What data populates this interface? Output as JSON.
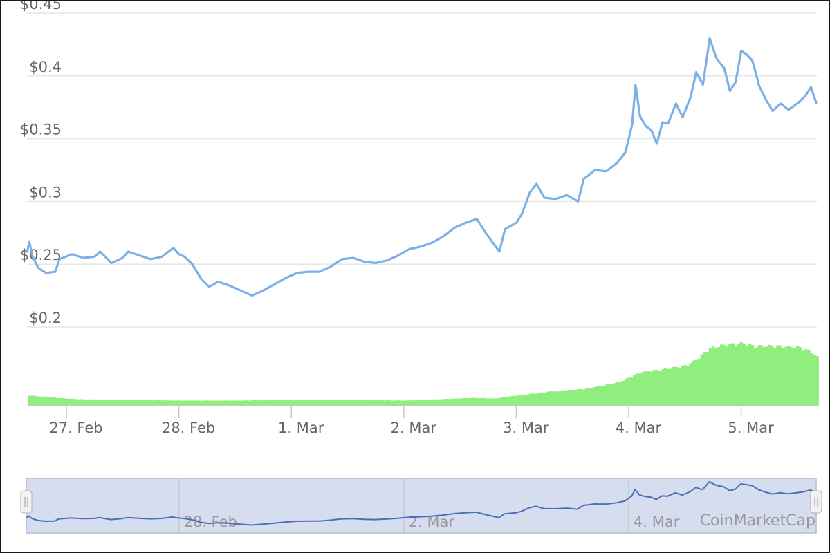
{
  "chart_data": {
    "type": "line",
    "title": "",
    "xlabel": "",
    "ylabel": "",
    "y_ticks": [
      "$0.2",
      "$0.25",
      "$0.3",
      "$0.35",
      "$0.4",
      "$0.45"
    ],
    "ylim": [
      0.2,
      0.45
    ],
    "x_ticks": [
      "27. Feb",
      "28. Feb",
      "1. Mar",
      "2. Mar",
      "3. Mar",
      "4. Mar",
      "5. Mar"
    ],
    "grid": true,
    "legend": "none",
    "price_color": "#7cb0e6",
    "volume_color": "#90ee7e",
    "price_series": {
      "name": "Price",
      "points": [
        [
          -0.35,
          0.259
        ],
        [
          -0.33,
          0.268
        ],
        [
          -0.3,
          0.256
        ],
        [
          -0.25,
          0.247
        ],
        [
          -0.18,
          0.243
        ],
        [
          -0.1,
          0.244
        ],
        [
          -0.06,
          0.254
        ],
        [
          0.05,
          0.258
        ],
        [
          0.15,
          0.255
        ],
        [
          0.25,
          0.256
        ],
        [
          0.3,
          0.26
        ],
        [
          0.4,
          0.251
        ],
        [
          0.5,
          0.255
        ],
        [
          0.55,
          0.26
        ],
        [
          0.65,
          0.257
        ],
        [
          0.75,
          0.254
        ],
        [
          0.85,
          0.256
        ],
        [
          0.95,
          0.263
        ],
        [
          1.0,
          0.258
        ],
        [
          1.05,
          0.256
        ],
        [
          1.12,
          0.25
        ],
        [
          1.2,
          0.238
        ],
        [
          1.27,
          0.232
        ],
        [
          1.35,
          0.236
        ],
        [
          1.45,
          0.233
        ],
        [
          1.55,
          0.229
        ],
        [
          1.65,
          0.225
        ],
        [
          1.75,
          0.229
        ],
        [
          1.85,
          0.234
        ],
        [
          1.95,
          0.239
        ],
        [
          2.05,
          0.243
        ],
        [
          2.15,
          0.244
        ],
        [
          2.25,
          0.244
        ],
        [
          2.35,
          0.248
        ],
        [
          2.45,
          0.254
        ],
        [
          2.55,
          0.255
        ],
        [
          2.65,
          0.252
        ],
        [
          2.75,
          0.251
        ],
        [
          2.85,
          0.253
        ],
        [
          2.95,
          0.257
        ],
        [
          3.05,
          0.262
        ],
        [
          3.15,
          0.264
        ],
        [
          3.25,
          0.267
        ],
        [
          3.35,
          0.272
        ],
        [
          3.45,
          0.279
        ],
        [
          3.55,
          0.283
        ],
        [
          3.65,
          0.286
        ],
        [
          3.72,
          0.276
        ],
        [
          3.8,
          0.266
        ],
        [
          3.85,
          0.26
        ],
        [
          3.9,
          0.278
        ],
        [
          4.0,
          0.283
        ],
        [
          4.05,
          0.29
        ],
        [
          4.12,
          0.307
        ],
        [
          4.18,
          0.314
        ],
        [
          4.25,
          0.303
        ],
        [
          4.35,
          0.302
        ],
        [
          4.45,
          0.305
        ],
        [
          4.55,
          0.3
        ],
        [
          4.6,
          0.318
        ],
        [
          4.7,
          0.325
        ],
        [
          4.8,
          0.324
        ],
        [
          4.9,
          0.331
        ],
        [
          4.97,
          0.339
        ],
        [
          5.03,
          0.361
        ],
        [
          5.06,
          0.393
        ],
        [
          5.1,
          0.368
        ],
        [
          5.15,
          0.36
        ],
        [
          5.2,
          0.357
        ],
        [
          5.25,
          0.346
        ],
        [
          5.3,
          0.363
        ],
        [
          5.35,
          0.362
        ],
        [
          5.42,
          0.378
        ],
        [
          5.48,
          0.367
        ],
        [
          5.55,
          0.383
        ],
        [
          5.6,
          0.403
        ],
        [
          5.66,
          0.393
        ],
        [
          5.72,
          0.43
        ],
        [
          5.78,
          0.414
        ],
        [
          5.85,
          0.406
        ],
        [
          5.9,
          0.388
        ],
        [
          5.95,
          0.395
        ],
        [
          6.0,
          0.42
        ],
        [
          6.05,
          0.417
        ],
        [
          6.1,
          0.412
        ],
        [
          6.16,
          0.392
        ],
        [
          6.22,
          0.381
        ],
        [
          6.28,
          0.372
        ],
        [
          6.35,
          0.378
        ],
        [
          6.42,
          0.373
        ],
        [
          6.5,
          0.378
        ],
        [
          6.57,
          0.384
        ],
        [
          6.62,
          0.391
        ],
        [
          6.67,
          0.378
        ]
      ]
    },
    "volume_series": {
      "name": "Volume",
      "points": [
        [
          -0.35,
          0.08
        ],
        [
          -0.1,
          0.06
        ],
        [
          0.1,
          0.05
        ],
        [
          0.5,
          0.045
        ],
        [
          1.0,
          0.04
        ],
        [
          1.5,
          0.04
        ],
        [
          2.0,
          0.045
        ],
        [
          2.5,
          0.045
        ],
        [
          3.0,
          0.04
        ],
        [
          3.3,
          0.05
        ],
        [
          3.6,
          0.06
        ],
        [
          3.8,
          0.055
        ],
        [
          4.0,
          0.08
        ],
        [
          4.3,
          0.11
        ],
        [
          4.6,
          0.13
        ],
        [
          4.9,
          0.18
        ],
        [
          5.0,
          0.22
        ],
        [
          5.1,
          0.26
        ],
        [
          5.3,
          0.28
        ],
        [
          5.5,
          0.31
        ],
        [
          5.6,
          0.36
        ],
        [
          5.7,
          0.44
        ],
        [
          5.85,
          0.47
        ],
        [
          6.0,
          0.48
        ],
        [
          6.1,
          0.46
        ],
        [
          6.3,
          0.46
        ],
        [
          6.5,
          0.45
        ],
        [
          6.6,
          0.42
        ],
        [
          6.67,
          0.37
        ]
      ]
    }
  },
  "navigator": {
    "labels": [
      "28. Feb",
      "2. Mar",
      "4. Mar"
    ],
    "series_color": "#4a6fb8",
    "mask_color": "#d6ddee"
  },
  "credit": "CoinMarketCap"
}
